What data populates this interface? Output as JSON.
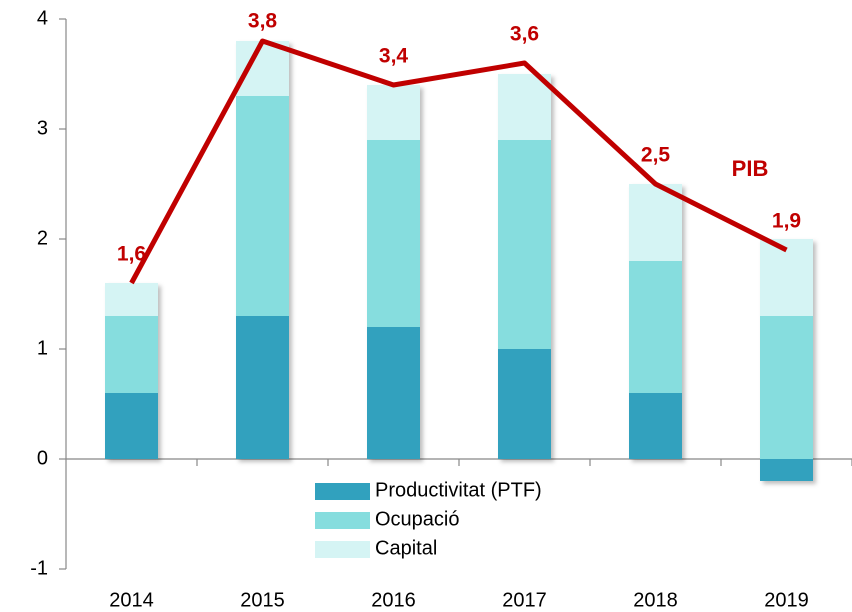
{
  "chart_data": {
    "type": "bar",
    "categories": [
      "2014",
      "2015",
      "2016",
      "2017",
      "2018",
      "2019"
    ],
    "series": [
      {
        "name": "Productivitat (PTF)",
        "color": "#31a1be",
        "values": [
          0.6,
          1.3,
          1.2,
          1.0,
          0.6,
          -0.2
        ]
      },
      {
        "name": "Ocupació",
        "color": "#86ddde",
        "values": [
          0.7,
          2.0,
          1.7,
          1.9,
          1.2,
          1.3
        ]
      },
      {
        "name": "Capital",
        "color": "#d5f4f4",
        "values": [
          0.3,
          0.5,
          0.5,
          0.6,
          0.7,
          0.7
        ]
      },
      {
        "name": "PIB",
        "type": "line",
        "color": "#c00000",
        "values": [
          1.6,
          3.8,
          3.4,
          3.6,
          2.5,
          1.9
        ],
        "value_labels": [
          "1,6",
          "3,8",
          "3,4",
          "3,6",
          "2,5",
          "1,9"
        ]
      }
    ],
    "stacked": true,
    "ylim": [
      -1,
      4
    ],
    "yticks": [
      -1,
      0,
      1,
      2,
      3,
      4
    ],
    "grid": false,
    "legend": "bottom"
  }
}
